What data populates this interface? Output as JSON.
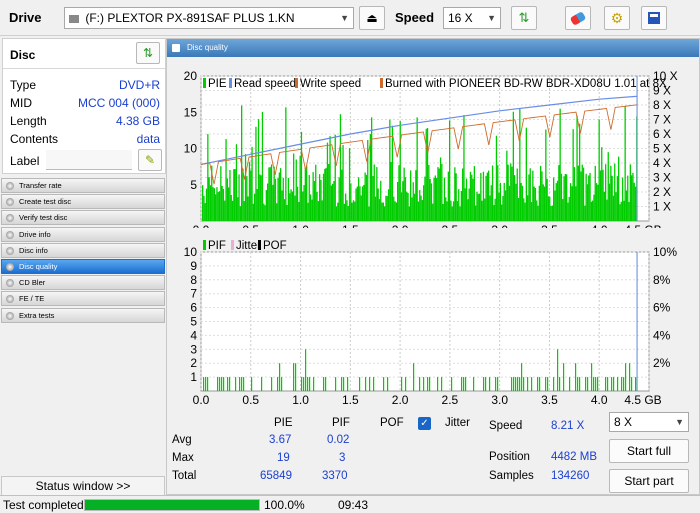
{
  "toolbar": {
    "drive_label": "Drive",
    "drive_value": "(F:)   PLEXTOR PX-891SAF PLUS 1.KN",
    "speed_label": "Speed",
    "speed_value": "16 X"
  },
  "disc": {
    "title": "Disc",
    "rows": [
      {
        "label": "Type",
        "value": "DVD+R"
      },
      {
        "label": "MID",
        "value": "MCC 004 (000)"
      },
      {
        "label": "Length",
        "value": "4.38 GB"
      },
      {
        "label": "Contents",
        "value": "data"
      }
    ],
    "label_label": "Label"
  },
  "nav": [
    "Transfer rate",
    "Create test disc",
    "Verify test disc",
    "Drive info",
    "Disc info",
    "Disc quality",
    "CD Bler",
    "FE / TE",
    "Extra tests"
  ],
  "nav_active": 5,
  "status_window": "Status window >>",
  "main_title": "Disc quality",
  "chart_data": [
    {
      "type": "bar",
      "legend": [
        "PIE",
        "Read speed",
        "Write speed",
        "Burned with PIONEER BD-RW   BDR-XD08U 1.01 at 8X"
      ],
      "x_ticks": [
        "0.0",
        "0.5",
        "1.0",
        "1.5",
        "2.0",
        "2.5",
        "3.0",
        "3.5",
        "4.0",
        "4.5 GB"
      ],
      "y_ticks": [
        "20",
        "15",
        "10",
        "5"
      ],
      "y2_ticks": [
        "10 X",
        "9 X",
        "8 X",
        "7 X",
        "6 X",
        "5 X",
        "4 X",
        "3 X",
        "2 X",
        "1 X"
      ],
      "xlim": [
        0,
        4.5
      ],
      "ylim": [
        0,
        20
      ],
      "y2lim": [
        0,
        10
      ],
      "pie_avg": 3.67,
      "pie_max": 19,
      "read_speed": [
        [
          0,
          3.9
        ],
        [
          0.5,
          4.6
        ],
        [
          1,
          5.3
        ],
        [
          1.5,
          6.0
        ],
        [
          2,
          6.6
        ],
        [
          2.5,
          7.1
        ],
        [
          3,
          7.6
        ],
        [
          3.5,
          8.0
        ],
        [
          4,
          8.4
        ],
        [
          4.38,
          8.6
        ]
      ]
    },
    {
      "type": "bar",
      "legend": [
        "PIF",
        "Jitter",
        "POF"
      ],
      "x_ticks": [
        "0.0",
        "0.5",
        "1.0",
        "1.5",
        "2.0",
        "2.5",
        "3.0",
        "3.5",
        "4.0",
        "4.5 GB"
      ],
      "y_ticks": [
        "10",
        "9",
        "8",
        "7",
        "6",
        "5",
        "4",
        "3",
        "2",
        "1"
      ],
      "y2_ticks": [
        "10%",
        "8%",
        "6%",
        "4%",
        "2%"
      ],
      "xlim": [
        0,
        4.5
      ],
      "ylim": [
        0,
        10
      ],
      "pif_avg": 0.02,
      "pif_max": 3
    }
  ],
  "stats": {
    "headers": [
      "PIE",
      "PIF",
      "POF",
      "Jitter"
    ],
    "rows": [
      {
        "name": "Avg",
        "pie": "3.67",
        "pif": "0.02"
      },
      {
        "name": "Max",
        "pie": "19",
        "pif": "3"
      },
      {
        "name": "Total",
        "pie": "65849",
        "pif": "3370"
      }
    ],
    "speed_label": "Speed",
    "speed_value": "8.21 X",
    "position_label": "Position",
    "position_value": "4482 MB",
    "samples_label": "Samples",
    "samples_value": "134260",
    "speed_select": "8 X",
    "start_full": "Start full",
    "start_part": "Start part"
  },
  "statusbar": {
    "text": "Test completed",
    "percent": "100.0%",
    "progress": 1.0,
    "time": "09:43"
  },
  "colors": {
    "green": "#00cc00",
    "read": "#6a8ce6",
    "write": "#d06a2a",
    "accent": "#3a78b8"
  }
}
